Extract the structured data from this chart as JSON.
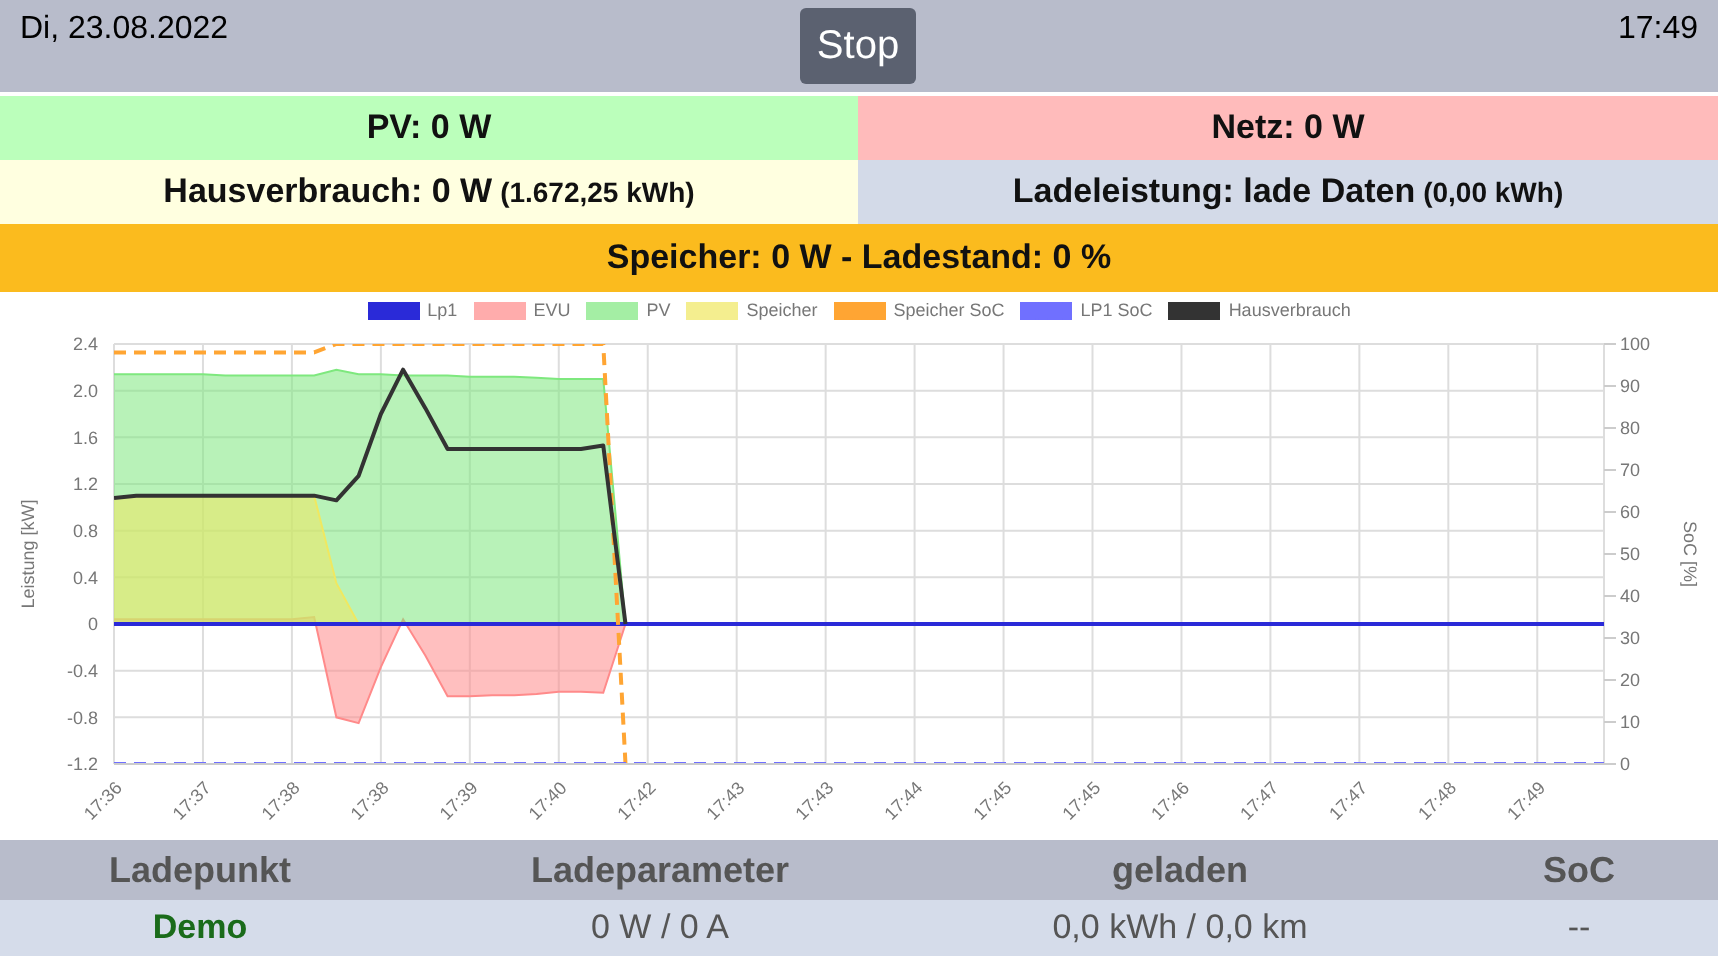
{
  "chart_data": {
    "type": "line",
    "annotations": [
      "Di, 23.08.2022",
      "Stop",
      "17:49",
      "PV: 0 W",
      "Netz: 0 W",
      "Hausverbrauch: 0 W",
      "(1.672,25 kWh)",
      "Ladeleistung: lade Daten",
      "(0,00 kWh)",
      "Speicher: 0 W - Ladestand: 0 %",
      "Ladepunkt",
      "Ladeparameter",
      "geladen",
      "SoC",
      "Demo",
      "0 W / 0 A",
      "0,0 kWh / 0,0 km",
      "--"
    ],
    "ylabel": "Leistung [kW]",
    "y2label": "SoC [%]",
    "categories": [
      "17:36",
      null,
      null,
      null,
      "17:37",
      null,
      null,
      null,
      "17:38",
      null,
      null,
      null,
      "17:38",
      null,
      null,
      null,
      "17:39",
      null,
      null,
      null,
      "17:40",
      null,
      null,
      null,
      "17:42",
      null,
      null,
      null,
      "17:43",
      null,
      null,
      null,
      "17:43",
      null,
      null,
      null,
      "17:44",
      null,
      null,
      null,
      "17:45",
      null,
      null,
      null,
      "17:45",
      null,
      null,
      null,
      "17:46",
      null,
      null,
      null,
      "17:47",
      null,
      null,
      null,
      "17:47",
      null,
      null,
      null,
      "17:48",
      null,
      null,
      null,
      "17:49",
      null,
      null,
      null
    ],
    "ylim": [
      -1.2,
      2.4
    ],
    "yticks": [
      -1.2,
      -0.8,
      -0.4,
      0,
      0.4,
      0.8,
      1.2,
      1.6,
      {
        "value": 2,
        "label": "2.0"
      },
      2.4
    ],
    "y2lim": [
      0,
      100
    ],
    "y2ticks": [
      0,
      10,
      20,
      30,
      40,
      50,
      60,
      70,
      80,
      90,
      100
    ],
    "grid": true,
    "legend": "top",
    "series": [
      {
        "name": "Lp1",
        "color": "#2a2ad8",
        "values": [
          0,
          0,
          0,
          0,
          0,
          0,
          0,
          0,
          0,
          0,
          0,
          0,
          0,
          0,
          0,
          0,
          0,
          0,
          0,
          0,
          0,
          0,
          0,
          0,
          0,
          0,
          0,
          0,
          0,
          0,
          0,
          0,
          0,
          0,
          0,
          0,
          0,
          0,
          0,
          0,
          0,
          0,
          0,
          0,
          0,
          0,
          0,
          0,
          0,
          0,
          0,
          0,
          0,
          0,
          0,
          0,
          0,
          0,
          0,
          0,
          0,
          0,
          0,
          0,
          0,
          0,
          0,
          0
        ]
      },
      {
        "name": "EVU",
        "color": "#ff8a8a",
        "type": "area",
        "values": [
          0.04,
          0.04,
          0.04,
          0.04,
          0.04,
          0.04,
          0.04,
          0.04,
          0.04,
          0.06,
          -0.8,
          -0.85,
          -0.37,
          0.04,
          -0.27,
          -0.62,
          -0.62,
          -0.61,
          -0.61,
          -0.6,
          -0.58,
          -0.58,
          -0.59,
          0,
          0,
          0,
          0,
          0,
          0,
          0,
          0,
          0,
          0,
          0,
          0,
          0,
          0,
          0,
          0,
          0,
          0,
          0,
          0,
          0,
          0,
          0,
          0,
          0,
          0,
          0,
          0,
          0,
          0,
          0,
          0,
          0,
          0,
          0,
          0,
          0,
          0,
          0,
          0,
          0,
          0,
          0,
          0,
          0
        ]
      },
      {
        "name": "PV",
        "color": "#7ee87e",
        "type": "area",
        "values": [
          2.14,
          2.14,
          2.14,
          2.14,
          2.14,
          2.13,
          2.13,
          2.13,
          2.13,
          2.13,
          2.18,
          2.14,
          2.14,
          2.13,
          2.13,
          2.13,
          2.12,
          2.12,
          2.12,
          2.11,
          2.1,
          2.1,
          2.1,
          0,
          0,
          0,
          0,
          0,
          0,
          0,
          0,
          0,
          0,
          0,
          0,
          0,
          0,
          0,
          0,
          0,
          0,
          0,
          0,
          0,
          0,
          0,
          0,
          0,
          0,
          0,
          0,
          0,
          0,
          0,
          0,
          0,
          0,
          0,
          0,
          0,
          0,
          0,
          0,
          0,
          0,
          0,
          0,
          0
        ]
      },
      {
        "name": "Speicher",
        "color": "#f0e860",
        "type": "area",
        "values": [
          1.08,
          1.1,
          1.1,
          1.1,
          1.1,
          1.1,
          1.1,
          1.1,
          1.1,
          1.1,
          0.35,
          0,
          0,
          0,
          0,
          0,
          0,
          0,
          0,
          0,
          0,
          0,
          0,
          0,
          0,
          0,
          0,
          0,
          0,
          0,
          0,
          0,
          0,
          0,
          0,
          0,
          0,
          0,
          0,
          0,
          0,
          0,
          0,
          0,
          0,
          0,
          0,
          0,
          0,
          0,
          0,
          0,
          0,
          0,
          0,
          0,
          0,
          0,
          0,
          0,
          0,
          0,
          0,
          0,
          0,
          0,
          0,
          0
        ]
      },
      {
        "name": "Speicher SoC",
        "color": "#ffa533",
        "axis": "y2",
        "line_style": "dashed",
        "values": [
          98,
          98,
          98,
          98,
          98,
          98,
          98,
          98,
          98,
          98,
          100,
          100,
          100,
          100,
          100,
          100,
          100,
          100,
          100,
          100,
          100,
          100,
          100,
          0,
          null,
          null,
          null,
          null,
          null,
          null,
          null,
          null,
          null,
          null,
          null,
          null,
          null,
          null,
          null,
          null,
          null,
          null,
          null,
          null,
          null,
          null,
          null,
          null,
          null,
          null,
          null,
          null,
          null,
          null,
          null,
          null,
          null,
          null,
          null,
          null,
          null,
          null,
          null,
          null,
          null,
          null,
          null,
          null
        ]
      },
      {
        "name": "LP1 SoC",
        "color": "#7070ff",
        "axis": "y2",
        "line_style": "dashed",
        "values": [
          0,
          0,
          0,
          0,
          0,
          0,
          0,
          0,
          0,
          0,
          0,
          0,
          0,
          0,
          0,
          0,
          0,
          0,
          0,
          0,
          0,
          0,
          0,
          0,
          0,
          0,
          0,
          0,
          0,
          0,
          0,
          0,
          0,
          0,
          0,
          0,
          0,
          0,
          0,
          0,
          0,
          0,
          0,
          0,
          0,
          0,
          0,
          0,
          0,
          0,
          0,
          0,
          0,
          0,
          0,
          0,
          0,
          0,
          0,
          0,
          0,
          0,
          0,
          0,
          0,
          0,
          0,
          0
        ]
      },
      {
        "name": "Hausverbrauch",
        "color": "#333333",
        "values": [
          1.08,
          1.1,
          1.1,
          1.1,
          1.1,
          1.1,
          1.1,
          1.1,
          1.1,
          1.1,
          1.06,
          1.27,
          1.8,
          2.18,
          1.85,
          1.5,
          1.5,
          1.5,
          1.5,
          1.5,
          1.5,
          1.5,
          1.53,
          0,
          null,
          null,
          null,
          null,
          null,
          null,
          null,
          null,
          null,
          null,
          null,
          null,
          null,
          null,
          null,
          null,
          null,
          null,
          null,
          null,
          null,
          null,
          null,
          null,
          null,
          null,
          null,
          null,
          null,
          null,
          null,
          null,
          null,
          null,
          null,
          null,
          null,
          null,
          null,
          null,
          null,
          null,
          null,
          null
        ]
      }
    ]
  }
}
